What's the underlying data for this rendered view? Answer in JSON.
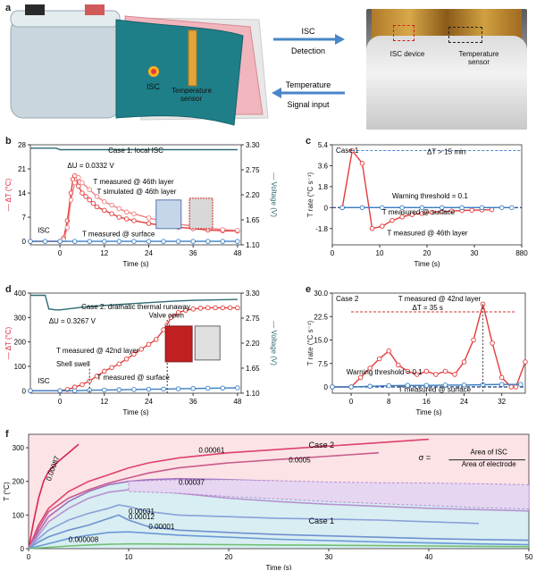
{
  "panel_labels": [
    "a",
    "b",
    "c",
    "d",
    "e",
    "f"
  ],
  "panel_a": {
    "isc": "ISC",
    "temperature_sensor": "Temperature\nsensor",
    "arrow_top_1": "ISC",
    "arrow_top_2": "Detection",
    "arrow_bottom_1": "Temperature",
    "arrow_bottom_2": "Signal input",
    "photo_isc_device": "ISC device",
    "photo_temperature_sensor": "Temperature\nsensor",
    "colors": {
      "cell": "#c9d6dd",
      "sheet_teal": "#1f7f88",
      "sheet_pink": "#e89aa3",
      "arrow": "#4a86c8"
    }
  },
  "chart_data": [
    {
      "panel": "b",
      "type": "line",
      "case_label": "Case 1: local ISC",
      "xlabel": "Time (s)",
      "ylabel": "— ΔT (°C)",
      "ylabel_right": "— Voltage (V)",
      "xlim": [
        -8,
        49
      ],
      "ylim": [
        -1,
        28
      ],
      "ylim_right": [
        1.1,
        3.3
      ],
      "xticks": [
        0,
        12,
        24,
        36,
        48
      ],
      "yticks": [
        0,
        7,
        14,
        21,
        28
      ],
      "yticks_right": [
        "1.10",
        "1.65",
        "2.20",
        "2.75",
        "3.30"
      ],
      "annotations": [
        "ΔU = 0.0332 V",
        "T measured @ 46th layer",
        "T simulated @ 46th layer",
        "ISC",
        "T measured @ surface"
      ],
      "series": [
        {
          "color": "#e23b3b",
          "x": [
            -8,
            0,
            1,
            2,
            3,
            3.5,
            4,
            4.5,
            5,
            6,
            7,
            8,
            9,
            10,
            12,
            14,
            16,
            18,
            20,
            24,
            28,
            32,
            36,
            40,
            44,
            48
          ],
          "y": [
            0,
            0,
            1,
            6,
            14,
            18,
            19,
            18,
            16,
            14,
            13,
            12,
            11,
            10,
            9,
            8,
            7,
            6.5,
            6,
            5.2,
            4.6,
            4.1,
            3.7,
            3.3,
            3.1,
            3
          ]
        },
        {
          "color": "#f08080",
          "x": [
            -8,
            0,
            1,
            2,
            3,
            4,
            5,
            6,
            8,
            10,
            12,
            14,
            16,
            18,
            20,
            24,
            28,
            32,
            36,
            40,
            44,
            48
          ],
          "y": [
            0,
            0,
            0.5,
            4,
            12,
            17,
            18.5,
            17,
            15,
            13,
            11.5,
            10.5,
            9.5,
            8.5,
            8,
            6.8,
            5.8,
            5,
            4.4,
            3.9,
            3.4,
            3.2
          ]
        },
        {
          "color": "#3a7fc4",
          "x": [
            -8,
            -4,
            0,
            4,
            8,
            12,
            16,
            20,
            24,
            28,
            32,
            36,
            40,
            44,
            48
          ],
          "y": [
            0,
            0,
            0,
            0,
            0,
            0,
            0,
            0,
            0,
            0,
            0,
            0,
            0,
            0,
            0
          ]
        },
        {
          "color": "#2f6b73",
          "axis": "right",
          "x": [
            -8,
            -1,
            0,
            48
          ],
          "y": [
            3.225,
            3.225,
            3.192,
            3.192
          ]
        }
      ]
    },
    {
      "panel": "c",
      "type": "line",
      "case_label": "Case 1",
      "xlabel": "Time (s)",
      "ylabel": "T rate (°C s⁻¹)",
      "xlim": [
        -2,
        36
      ],
      "ylim": [
        -3.2,
        5.4
      ],
      "xticks": [
        "0",
        "10",
        "20",
        "30",
        "880"
      ],
      "yticks": [
        "-1.8",
        "0",
        "1.8",
        "3.6",
        "5.4"
      ],
      "annotations": [
        "ΔT > 15 min",
        "Warning threshold = 0.1",
        "T measured @ surface",
        "T measured @ 46th layer"
      ],
      "series": [
        {
          "color": "#e23b3b",
          "x": [
            0,
            2,
            4,
            6,
            8,
            10,
            12,
            14,
            16,
            18,
            20,
            22,
            24,
            26,
            28,
            30
          ],
          "y": [
            0,
            4.9,
            3.8,
            -1.8,
            -1.6,
            -1.1,
            -0.8,
            -0.6,
            -0.5,
            -0.4,
            -0.35,
            -0.3,
            -0.25,
            -0.22,
            -0.2,
            -0.18
          ]
        },
        {
          "color": "#3a7fc4",
          "x": [
            0,
            4,
            8,
            12,
            16,
            20,
            24,
            28,
            32,
            34
          ],
          "y": [
            0,
            0,
            0,
            0,
            0,
            0,
            0,
            0,
            0,
            0
          ]
        }
      ]
    },
    {
      "panel": "d",
      "type": "line",
      "case_label": "Case 2: dramatic thermal runaway",
      "xlabel": "Time (s)",
      "ylabel": "— ΔT (°C)",
      "ylabel_right": "— Voltage (V)",
      "xlim": [
        -8,
        49
      ],
      "ylim": [
        -10,
        400
      ],
      "ylim_right": [
        1.1,
        3.3
      ],
      "xticks": [
        0,
        12,
        24,
        36,
        48
      ],
      "yticks": [
        0,
        100,
        200,
        300,
        400
      ],
      "yticks_right": [
        "1.10",
        "1.65",
        "2.20",
        "2.75",
        "3.30"
      ],
      "annotations": [
        "ΔU = 0.3267 V",
        "Valve open",
        "T measured @ 42nd layer",
        "Shell swell",
        "ISC",
        "T measured @\nsurface"
      ],
      "series": [
        {
          "color": "#e23b3b",
          "x": [
            -8,
            0,
            2,
            4,
            6,
            8,
            10,
            12,
            14,
            16,
            18,
            20,
            22,
            24,
            26,
            28,
            29,
            30,
            32,
            34,
            36,
            38,
            40,
            42,
            44,
            46,
            48
          ],
          "y": [
            0,
            0,
            5,
            15,
            25,
            40,
            60,
            80,
            95,
            110,
            130,
            150,
            170,
            190,
            210,
            250,
            270,
            300,
            320,
            330,
            335,
            338,
            340,
            340,
            340,
            340,
            340
          ]
        },
        {
          "color": "#3a7fc4",
          "x": [
            -8,
            0,
            4,
            8,
            12,
            16,
            20,
            24,
            28,
            32,
            36,
            40,
            44,
            48
          ],
          "y": [
            0,
            0,
            0,
            2,
            3,
            4,
            5,
            6,
            7,
            8,
            9,
            10,
            11,
            12
          ]
        },
        {
          "color": "#2f6b73",
          "axis": "right",
          "x": [
            -8,
            -4,
            -3,
            -1,
            0,
            2,
            4,
            6,
            10,
            20,
            30,
            36,
            48
          ],
          "y": [
            3.25,
            3.25,
            2.95,
            2.93,
            2.93,
            2.95,
            2.97,
            2.99,
            3.02,
            3.07,
            3.12,
            3.14,
            3.16
          ]
        }
      ]
    },
    {
      "panel": "e",
      "type": "line",
      "case_label": "Case 2",
      "xlabel": "Time (s)",
      "ylabel": "T rate (°C s⁻¹)",
      "xlim": [
        -4,
        37
      ],
      "ylim": [
        -2,
        30
      ],
      "xticks": [
        0,
        8,
        16,
        24,
        32
      ],
      "yticks": [
        "0",
        "7.5",
        "15.0",
        "22.5",
        "30.0"
      ],
      "annotations": [
        "T measured @ 42nd layer",
        "ΔT = 35 s",
        "Warning threshold = 0.1",
        "T measured @ surface"
      ],
      "series": [
        {
          "color": "#e23b3b",
          "x": [
            -4,
            0,
            2,
            4,
            6,
            8,
            10,
            12,
            14,
            16,
            18,
            20,
            22,
            24,
            26,
            28,
            30,
            32,
            34,
            35,
            37
          ],
          "y": [
            0,
            0,
            3,
            6,
            9,
            11.5,
            7,
            5,
            4,
            5,
            4,
            5,
            4,
            8,
            15,
            26.5,
            14,
            3,
            0,
            0,
            8
          ]
        },
        {
          "color": "#3a7fc4",
          "x": [
            -4,
            0,
            4,
            8,
            12,
            16,
            20,
            24,
            28,
            32,
            36
          ],
          "y": [
            0,
            0,
            0.2,
            0.4,
            0.5,
            0.5,
            0.6,
            0.6,
            0.7,
            0.8,
            0.8
          ]
        }
      ]
    },
    {
      "panel": "f",
      "type": "area",
      "xlabel": "Time (s)",
      "ylabel": "T (°C)",
      "xlim": [
        0,
        50
      ],
      "ylim": [
        0,
        340
      ],
      "xticks": [
        0,
        10,
        20,
        30,
        40,
        50
      ],
      "yticks": [
        0,
        100,
        200,
        300
      ],
      "region_labels": [
        "Case 2",
        "Case 1"
      ],
      "formula": {
        "lhs": "σ =",
        "numerator": "Area of ISC",
        "denominator": "Area of electrode"
      },
      "series": [
        {
          "name": "0.00087",
          "color": "#d92550",
          "x": [
            0,
            0.5,
            1,
            1.5,
            2,
            3,
            4,
            5
          ],
          "y": [
            0,
            80,
            150,
            200,
            230,
            260,
            285,
            310
          ]
        },
        {
          "name": "0.00061",
          "color": "#e0406a",
          "x": [
            0,
            1,
            2,
            4,
            6,
            8,
            10,
            12,
            15,
            20,
            25,
            30,
            35,
            40
          ],
          "y": [
            0,
            70,
            120,
            170,
            200,
            220,
            240,
            255,
            270,
            285,
            295,
            305,
            315,
            325
          ]
        },
        {
          "name": "0.0005",
          "color": "#c85a8c",
          "x": [
            0,
            1,
            2,
            4,
            6,
            8,
            10,
            12,
            15,
            20,
            25,
            30,
            35
          ],
          "y": [
            0,
            60,
            110,
            150,
            175,
            195,
            210,
            225,
            240,
            255,
            265,
            275,
            285
          ]
        },
        {
          "name": "0.00037",
          "color": "#a070c0",
          "x": [
            0,
            1,
            2,
            4,
            6,
            8,
            10,
            12,
            15,
            20,
            25,
            30,
            35,
            40,
            45,
            50
          ],
          "y": [
            0,
            50,
            95,
            140,
            170,
            190,
            200,
            205,
            208,
            205,
            200,
            195,
            192,
            190,
            188,
            185
          ]
        },
        {
          "name": "",
          "color": "#b890d0",
          "x": [
            0,
            1,
            2,
            4,
            6,
            8,
            10,
            12,
            15,
            20,
            25,
            30,
            35,
            40,
            45,
            50
          ],
          "y": [
            0,
            40,
            80,
            120,
            150,
            168,
            175,
            172,
            165,
            150,
            140,
            132,
            126,
            120,
            116,
            112
          ]
        },
        {
          "name": "0.00031",
          "color": "#8aa0d8",
          "x": [
            0,
            1,
            2,
            4,
            6,
            8,
            9,
            10,
            12,
            15,
            20,
            25,
            30,
            35,
            40,
            45
          ],
          "y": [
            0,
            30,
            55,
            85,
            105,
            120,
            130,
            125,
            110,
            100,
            95,
            90,
            88,
            85,
            80,
            75
          ]
        },
        {
          "name": "0.00012",
          "color": "#7090d0",
          "x": [
            0,
            1,
            2,
            4,
            6,
            8,
            9,
            10,
            12,
            15,
            20,
            25,
            30,
            35,
            40,
            45,
            50
          ],
          "y": [
            0,
            20,
            35,
            55,
            70,
            90,
            100,
            85,
            65,
            55,
            48,
            42,
            38,
            34,
            30,
            27,
            25
          ]
        },
        {
          "name": "0.00001",
          "color": "#6a98d6",
          "x": [
            0,
            2,
            4,
            6,
            8,
            10,
            12,
            15,
            20,
            25,
            30,
            35,
            40,
            45,
            50
          ],
          "y": [
            0,
            15,
            30,
            40,
            48,
            50,
            46,
            40,
            34,
            28,
            24,
            20,
            17,
            14,
            12
          ]
        },
        {
          "name": "0.000008",
          "color": "#70c070",
          "x": [
            0,
            2,
            4,
            6,
            8,
            10,
            12,
            15,
            20,
            25,
            30,
            35,
            40,
            45,
            50
          ],
          "y": [
            0,
            4,
            8,
            11,
            13,
            14,
            14,
            13,
            12,
            11,
            10,
            9,
            8,
            7,
            6
          ]
        }
      ]
    }
  ]
}
